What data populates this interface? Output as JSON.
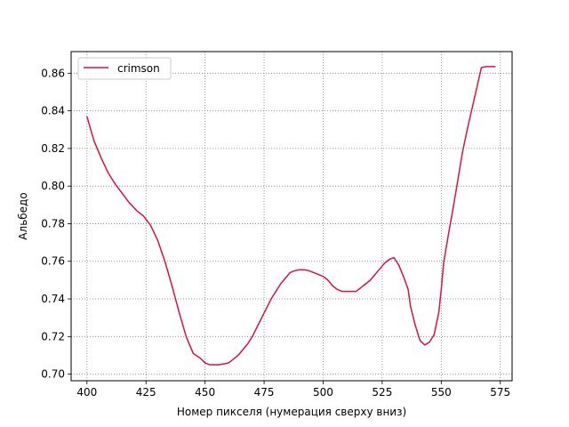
{
  "chart_data": {
    "type": "line",
    "xlabel": "Номер пикселя (нумерация сверху вниз)",
    "ylabel": "Альбедо",
    "xlim": [
      393.3,
      580.0
    ],
    "ylim": [
      0.6965,
      0.8715
    ],
    "xticks": [
      400,
      425,
      450,
      475,
      500,
      525,
      550,
      575
    ],
    "yticks": [
      0.7,
      0.72,
      0.74,
      0.76,
      0.78,
      0.8,
      0.82,
      0.84,
      0.86
    ],
    "xtick_labels": [
      "400",
      "425",
      "450",
      "475",
      "500",
      "525",
      "550",
      "575"
    ],
    "ytick_labels": [
      "0.70",
      "0.72",
      "0.74",
      "0.76",
      "0.78",
      "0.80",
      "0.82",
      "0.84",
      "0.86"
    ],
    "grid": true,
    "legend_position": "top-left",
    "series": [
      {
        "name": "crimson",
        "color": "#dc143c",
        "x": [
          400,
          403,
          406,
          409,
          412,
          415,
          418,
          421,
          424,
          427,
          430,
          433,
          436,
          439,
          442,
          445,
          448,
          450,
          452,
          454,
          456,
          458,
          460,
          462,
          464,
          466,
          468,
          470,
          472,
          474,
          476,
          478,
          480,
          482,
          484,
          486,
          488,
          490,
          492,
          494,
          496,
          498,
          500,
          502,
          504,
          506,
          508,
          510,
          512,
          514,
          516,
          518,
          520,
          522,
          524,
          526,
          528,
          530,
          532,
          534,
          536,
          537,
          539,
          541,
          543,
          545,
          547,
          549,
          550,
          551,
          553,
          555,
          557,
          559,
          561,
          563,
          565,
          567,
          569,
          571,
          573
        ],
        "y": [
          0.837,
          0.824,
          0.815,
          0.807,
          0.801,
          0.796,
          0.791,
          0.787,
          0.784,
          0.779,
          0.771,
          0.76,
          0.747,
          0.733,
          0.72,
          0.711,
          0.7085,
          0.706,
          0.705,
          0.705,
          0.705,
          0.7055,
          0.706,
          0.708,
          0.71,
          0.713,
          0.716,
          0.72,
          0.725,
          0.73,
          0.735,
          0.74,
          0.744,
          0.748,
          0.751,
          0.754,
          0.755,
          0.7555,
          0.7555,
          0.755,
          0.754,
          0.753,
          0.752,
          0.75,
          0.747,
          0.745,
          0.744,
          0.744,
          0.744,
          0.744,
          0.746,
          0.748,
          0.75,
          0.753,
          0.756,
          0.759,
          0.761,
          0.762,
          0.758,
          0.752,
          0.745,
          0.736,
          0.726,
          0.718,
          0.7155,
          0.717,
          0.721,
          0.733,
          0.745,
          0.759,
          0.774,
          0.788,
          0.803,
          0.818,
          0.83,
          0.841,
          0.852,
          0.863,
          0.8635,
          0.8635,
          0.8635
        ]
      }
    ]
  }
}
